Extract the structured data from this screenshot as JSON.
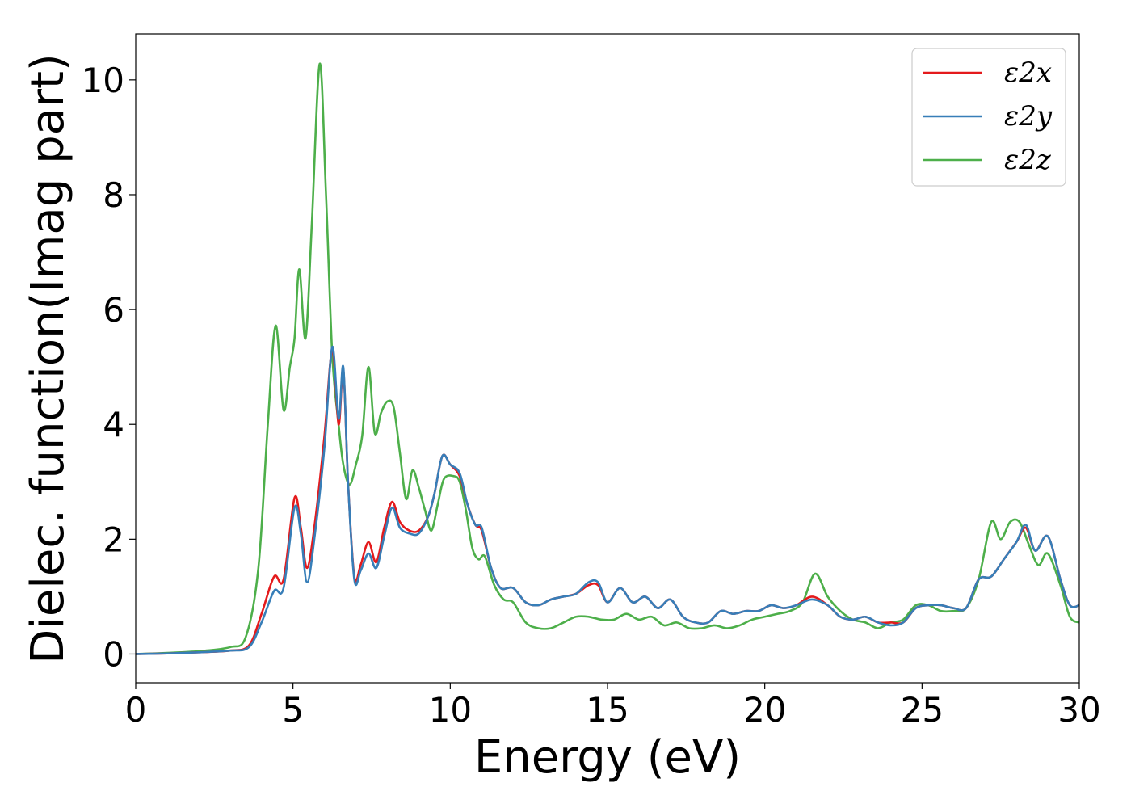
{
  "chart_data": {
    "type": "line",
    "title": "",
    "xlabel": "Energy (eV)",
    "ylabel": "Dielec. function(Imag part)",
    "xlim": [
      0,
      30
    ],
    "ylim": [
      -0.5,
      10.8
    ],
    "xticks": [
      0,
      5,
      10,
      15,
      20,
      25,
      30
    ],
    "yticks": [
      0,
      2,
      4,
      6,
      8,
      10
    ],
    "grid": false,
    "legend_position": "top-right",
    "series": [
      {
        "name": "ε2x",
        "color": "#e41a1c",
        "points": [
          [
            0,
            0
          ],
          [
            1,
            0.01
          ],
          [
            2,
            0.03
          ],
          [
            3,
            0.06
          ],
          [
            3.6,
            0.15
          ],
          [
            4,
            0.7
          ],
          [
            4.4,
            1.35
          ],
          [
            4.7,
            1.3
          ],
          [
            5.05,
            2.72
          ],
          [
            5.25,
            2.2
          ],
          [
            5.45,
            1.5
          ],
          [
            5.7,
            2.3
          ],
          [
            6.0,
            3.8
          ],
          [
            6.25,
            5.3
          ],
          [
            6.45,
            4.0
          ],
          [
            6.6,
            4.95
          ],
          [
            6.75,
            3.0
          ],
          [
            6.95,
            1.35
          ],
          [
            7.15,
            1.55
          ],
          [
            7.4,
            1.95
          ],
          [
            7.65,
            1.6
          ],
          [
            7.9,
            2.2
          ],
          [
            8.15,
            2.65
          ],
          [
            8.4,
            2.3
          ],
          [
            8.7,
            2.15
          ],
          [
            9.0,
            2.15
          ],
          [
            9.3,
            2.4
          ],
          [
            9.5,
            2.8
          ],
          [
            9.75,
            3.45
          ],
          [
            10.0,
            3.3
          ],
          [
            10.3,
            3.1
          ],
          [
            10.55,
            2.6
          ],
          [
            10.8,
            2.25
          ],
          [
            11.0,
            2.15
          ],
          [
            11.3,
            1.5
          ],
          [
            11.6,
            1.15
          ],
          [
            12.0,
            1.15
          ],
          [
            12.4,
            0.9
          ],
          [
            12.8,
            0.85
          ],
          [
            13.2,
            0.95
          ],
          [
            13.6,
            1.0
          ],
          [
            14.0,
            1.05
          ],
          [
            14.4,
            1.2
          ],
          [
            14.7,
            1.2
          ],
          [
            15.0,
            0.9
          ],
          [
            15.4,
            1.15
          ],
          [
            15.8,
            0.9
          ],
          [
            16.2,
            1.0
          ],
          [
            16.6,
            0.8
          ],
          [
            17.0,
            0.95
          ],
          [
            17.4,
            0.65
          ],
          [
            17.8,
            0.55
          ],
          [
            18.2,
            0.55
          ],
          [
            18.6,
            0.75
          ],
          [
            19.0,
            0.7
          ],
          [
            19.4,
            0.75
          ],
          [
            19.8,
            0.75
          ],
          [
            20.2,
            0.85
          ],
          [
            20.6,
            0.8
          ],
          [
            21.0,
            0.85
          ],
          [
            21.5,
            1.0
          ],
          [
            22.0,
            0.85
          ],
          [
            22.4,
            0.65
          ],
          [
            22.8,
            0.6
          ],
          [
            23.2,
            0.65
          ],
          [
            23.6,
            0.55
          ],
          [
            24.0,
            0.55
          ],
          [
            24.4,
            0.55
          ],
          [
            24.8,
            0.8
          ],
          [
            25.2,
            0.85
          ],
          [
            25.6,
            0.85
          ],
          [
            26.0,
            0.8
          ],
          [
            26.4,
            0.8
          ],
          [
            26.8,
            1.3
          ],
          [
            27.2,
            1.35
          ],
          [
            27.6,
            1.65
          ],
          [
            28.0,
            1.95
          ],
          [
            28.3,
            2.2
          ],
          [
            28.6,
            1.8
          ],
          [
            29.0,
            2.05
          ],
          [
            29.4,
            1.3
          ],
          [
            29.7,
            0.85
          ],
          [
            30,
            0.85
          ]
        ]
      },
      {
        "name": "ε2y",
        "color": "#377eb8",
        "points": [
          [
            0,
            0
          ],
          [
            1,
            0.01
          ],
          [
            2,
            0.03
          ],
          [
            3,
            0.06
          ],
          [
            3.6,
            0.12
          ],
          [
            4,
            0.55
          ],
          [
            4.4,
            1.1
          ],
          [
            4.7,
            1.15
          ],
          [
            5.05,
            2.55
          ],
          [
            5.25,
            2.1
          ],
          [
            5.45,
            1.25
          ],
          [
            5.7,
            2.1
          ],
          [
            6.0,
            3.6
          ],
          [
            6.25,
            5.35
          ],
          [
            6.45,
            4.1
          ],
          [
            6.6,
            5.0
          ],
          [
            6.75,
            3.0
          ],
          [
            6.95,
            1.3
          ],
          [
            7.15,
            1.45
          ],
          [
            7.4,
            1.75
          ],
          [
            7.65,
            1.5
          ],
          [
            7.9,
            2.05
          ],
          [
            8.15,
            2.55
          ],
          [
            8.4,
            2.2
          ],
          [
            8.7,
            2.1
          ],
          [
            9.0,
            2.1
          ],
          [
            9.3,
            2.4
          ],
          [
            9.5,
            2.8
          ],
          [
            9.75,
            3.45
          ],
          [
            10.0,
            3.3
          ],
          [
            10.3,
            3.15
          ],
          [
            10.55,
            2.6
          ],
          [
            10.8,
            2.25
          ],
          [
            11.0,
            2.2
          ],
          [
            11.3,
            1.5
          ],
          [
            11.6,
            1.15
          ],
          [
            12.0,
            1.15
          ],
          [
            12.4,
            0.9
          ],
          [
            12.8,
            0.85
          ],
          [
            13.2,
            0.95
          ],
          [
            13.6,
            1.0
          ],
          [
            14.0,
            1.05
          ],
          [
            14.4,
            1.25
          ],
          [
            14.7,
            1.25
          ],
          [
            15.0,
            0.9
          ],
          [
            15.4,
            1.15
          ],
          [
            15.8,
            0.9
          ],
          [
            16.2,
            1.0
          ],
          [
            16.6,
            0.8
          ],
          [
            17.0,
            0.95
          ],
          [
            17.4,
            0.65
          ],
          [
            17.8,
            0.55
          ],
          [
            18.2,
            0.55
          ],
          [
            18.6,
            0.75
          ],
          [
            19.0,
            0.7
          ],
          [
            19.4,
            0.75
          ],
          [
            19.8,
            0.75
          ],
          [
            20.2,
            0.85
          ],
          [
            20.6,
            0.8
          ],
          [
            21.0,
            0.85
          ],
          [
            21.5,
            0.95
          ],
          [
            22.0,
            0.85
          ],
          [
            22.4,
            0.65
          ],
          [
            22.8,
            0.6
          ],
          [
            23.2,
            0.65
          ],
          [
            23.6,
            0.55
          ],
          [
            24.0,
            0.5
          ],
          [
            24.4,
            0.55
          ],
          [
            24.8,
            0.8
          ],
          [
            25.2,
            0.85
          ],
          [
            25.6,
            0.85
          ],
          [
            26.0,
            0.8
          ],
          [
            26.4,
            0.8
          ],
          [
            26.8,
            1.3
          ],
          [
            27.2,
            1.35
          ],
          [
            27.6,
            1.65
          ],
          [
            28.0,
            1.95
          ],
          [
            28.3,
            2.25
          ],
          [
            28.6,
            1.8
          ],
          [
            29.0,
            2.05
          ],
          [
            29.4,
            1.3
          ],
          [
            29.7,
            0.85
          ],
          [
            30,
            0.85
          ]
        ]
      },
      {
        "name": "ε2z",
        "color": "#4daf4a",
        "points": [
          [
            0,
            0
          ],
          [
            1,
            0.02
          ],
          [
            2,
            0.05
          ],
          [
            3,
            0.12
          ],
          [
            3.5,
            0.3
          ],
          [
            3.9,
            1.5
          ],
          [
            4.2,
            4.0
          ],
          [
            4.45,
            5.72
          ],
          [
            4.7,
            4.25
          ],
          [
            4.9,
            5.0
          ],
          [
            5.05,
            5.5
          ],
          [
            5.2,
            6.7
          ],
          [
            5.4,
            5.5
          ],
          [
            5.6,
            7.5
          ],
          [
            5.85,
            10.28
          ],
          [
            6.05,
            8.0
          ],
          [
            6.25,
            5.2
          ],
          [
            6.45,
            4.0
          ],
          [
            6.6,
            3.3
          ],
          [
            6.8,
            2.95
          ],
          [
            7.0,
            3.3
          ],
          [
            7.2,
            3.8
          ],
          [
            7.4,
            5.0
          ],
          [
            7.6,
            3.85
          ],
          [
            7.8,
            4.2
          ],
          [
            8.0,
            4.4
          ],
          [
            8.2,
            4.3
          ],
          [
            8.4,
            3.5
          ],
          [
            8.6,
            2.7
          ],
          [
            8.8,
            3.2
          ],
          [
            9.0,
            2.9
          ],
          [
            9.2,
            2.5
          ],
          [
            9.4,
            2.15
          ],
          [
            9.6,
            2.6
          ],
          [
            9.8,
            3.05
          ],
          [
            10.1,
            3.1
          ],
          [
            10.3,
            3.0
          ],
          [
            10.5,
            2.5
          ],
          [
            10.7,
            1.85
          ],
          [
            10.9,
            1.65
          ],
          [
            11.1,
            1.7
          ],
          [
            11.4,
            1.2
          ],
          [
            11.7,
            0.95
          ],
          [
            12.0,
            0.9
          ],
          [
            12.4,
            0.55
          ],
          [
            12.8,
            0.45
          ],
          [
            13.2,
            0.45
          ],
          [
            13.6,
            0.55
          ],
          [
            14.0,
            0.65
          ],
          [
            14.4,
            0.65
          ],
          [
            14.8,
            0.6
          ],
          [
            15.2,
            0.6
          ],
          [
            15.6,
            0.7
          ],
          [
            16.0,
            0.6
          ],
          [
            16.4,
            0.65
          ],
          [
            16.8,
            0.5
          ],
          [
            17.2,
            0.55
          ],
          [
            17.6,
            0.45
          ],
          [
            18.0,
            0.45
          ],
          [
            18.4,
            0.5
          ],
          [
            18.8,
            0.45
          ],
          [
            19.2,
            0.5
          ],
          [
            19.6,
            0.6
          ],
          [
            20.0,
            0.65
          ],
          [
            20.4,
            0.7
          ],
          [
            20.8,
            0.75
          ],
          [
            21.2,
            0.9
          ],
          [
            21.6,
            1.4
          ],
          [
            22.0,
            1.0
          ],
          [
            22.4,
            0.75
          ],
          [
            22.8,
            0.6
          ],
          [
            23.2,
            0.55
          ],
          [
            23.6,
            0.45
          ],
          [
            24.0,
            0.55
          ],
          [
            24.4,
            0.6
          ],
          [
            24.8,
            0.85
          ],
          [
            25.2,
            0.85
          ],
          [
            25.6,
            0.75
          ],
          [
            26.0,
            0.75
          ],
          [
            26.4,
            0.8
          ],
          [
            26.8,
            1.3
          ],
          [
            27.2,
            2.3
          ],
          [
            27.5,
            2.0
          ],
          [
            27.8,
            2.3
          ],
          [
            28.1,
            2.3
          ],
          [
            28.4,
            1.9
          ],
          [
            28.7,
            1.55
          ],
          [
            29.0,
            1.75
          ],
          [
            29.4,
            1.2
          ],
          [
            29.7,
            0.65
          ],
          [
            30,
            0.55
          ]
        ]
      }
    ]
  }
}
